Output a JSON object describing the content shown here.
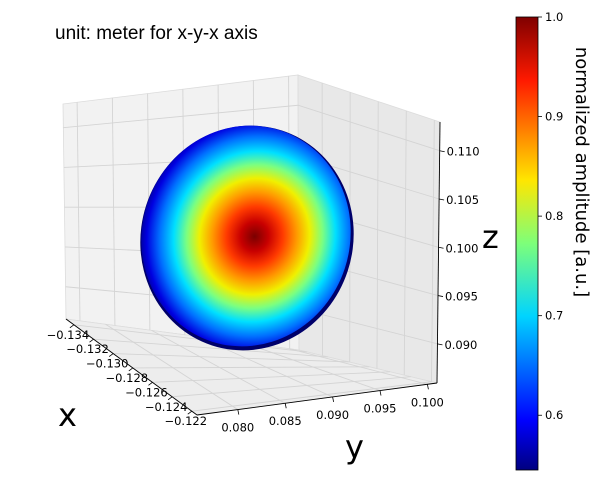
{
  "chart_data": {
    "type": "scatter",
    "projection": "3d",
    "title": "unit: meter for x-y-x axis",
    "xlabel": "x",
    "ylabel": "y",
    "zlabel": "z",
    "x_ticks": [
      "−0.134",
      "−0.132",
      "−0.130",
      "−0.128",
      "−0.126",
      "−0.124",
      "−0.122"
    ],
    "y_ticks": [
      "0.080",
      "0.085",
      "0.090",
      "0.095",
      "0.100"
    ],
    "z_ticks": [
      "0.090",
      "0.095",
      "0.100",
      "0.105",
      "0.110"
    ],
    "xlim": [
      -0.135,
      -0.121
    ],
    "ylim": [
      0.077,
      0.102
    ],
    "zlim": [
      0.0865,
      0.1135
    ],
    "grid": true,
    "surface": {
      "shape": "disk",
      "center": {
        "x": -0.128,
        "y": 0.0895,
        "z": 0.1
      },
      "radius": 0.0105,
      "amplitude_center": 1.0,
      "amplitude_edge": 0.55
    },
    "colorbar": {
      "label": "normalized amplitude [a.u.]",
      "colormap": "jet",
      "range": [
        0.545,
        1.0
      ],
      "ticks": [
        "0.6",
        "0.7",
        "0.8",
        "0.9",
        "1.0"
      ],
      "tick_values": [
        0.6,
        0.7,
        0.8,
        0.9,
        1.0
      ],
      "placement": "right"
    }
  }
}
